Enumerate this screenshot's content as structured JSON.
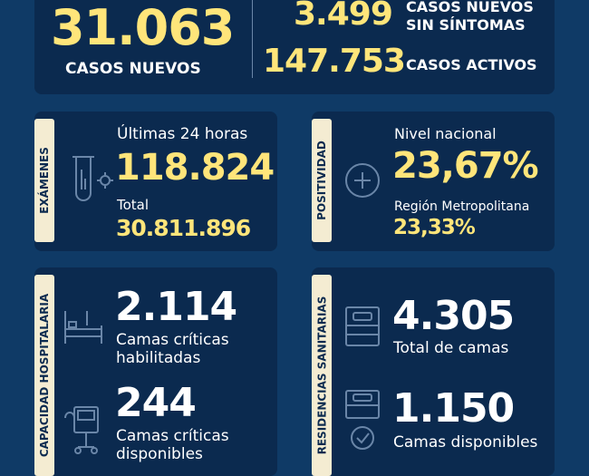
{
  "summary": {
    "new_cases_value": "31.063",
    "new_cases_label": "CASOS NUEVOS",
    "asymptomatic_value": "3.499",
    "asymptomatic_label_line1": "CASOS NUEVOS",
    "asymptomatic_label_line2": "SIN SÍNTOMAS",
    "active_value": "147.753",
    "active_label": "CASOS ACTIVOS"
  },
  "exams": {
    "tab": "EXÁMENES",
    "last24_label": "Últimas 24 horas",
    "last24_value": "118.824",
    "total_label": "Total",
    "total_value": "30.811.896"
  },
  "positivity": {
    "tab": "POSITIVIDAD",
    "national_label": "Nivel nacional",
    "national_value": "23,67%",
    "metro_label": "Región Metropolitana",
    "metro_value": "23,33%"
  },
  "hospital": {
    "tab": "CAPACIDAD HOSPITALARIA",
    "beds_enabled_value": "2.114",
    "beds_enabled_label1": "Camas críticas",
    "beds_enabled_label2": "habilitadas",
    "beds_available_value": "244",
    "beds_available_label1": "Camas críticas",
    "beds_available_label2": "disponibles"
  },
  "residences": {
    "tab": "RESIDENCIAS SANITARIAS",
    "total_beds_value": "4.305",
    "total_beds_label": "Total de camas",
    "available_beds_value": "1.150",
    "available_beds_label": "Camas disponibles"
  },
  "colors": {
    "background": "#0f3a66",
    "card": "#0b2a4f",
    "accent": "#ffe57a",
    "tab": "#f4ecd2"
  }
}
